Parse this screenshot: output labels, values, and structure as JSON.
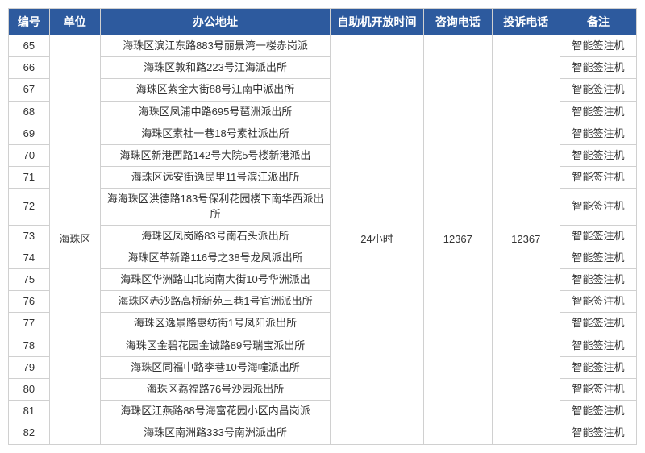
{
  "columns": [
    "编号",
    "单位",
    "办公地址",
    "自助机开放时间",
    "咨询电话",
    "投诉电话",
    "备注"
  ],
  "unit": "海珠区",
  "open_time": "24小时",
  "consult_phone": "12367",
  "complaint_phone": "12367",
  "rows": [
    {
      "id": "65",
      "addr": "海珠区滨江东路883号丽景湾一楼赤岗派",
      "note": "智能签注机"
    },
    {
      "id": "66",
      "addr": "海珠区敦和路223号江海派出所",
      "note": "智能签注机"
    },
    {
      "id": "67",
      "addr": "海珠区紫金大街88号江南中派出所",
      "note": "智能签注机"
    },
    {
      "id": "68",
      "addr": "海珠区凤浦中路695号琶洲派出所",
      "note": "智能签注机"
    },
    {
      "id": "69",
      "addr": "海珠区素社一巷18号素社派出所",
      "note": "智能签注机"
    },
    {
      "id": "70",
      "addr": "海珠区新港西路142号大院5号楼新港派出",
      "note": "智能签注机"
    },
    {
      "id": "71",
      "addr": "海珠区远安街逸民里11号滨江派出所",
      "note": "智能签注机"
    },
    {
      "id": "72",
      "addr": "海海珠区洪德路183号保利花园楼下南华西派出所",
      "note": "智能签注机"
    },
    {
      "id": "73",
      "addr": "海珠区凤岗路83号南石头派出所",
      "note": "智能签注机"
    },
    {
      "id": "74",
      "addr": "海珠区革新路116号之38号龙凤派出所",
      "note": "智能签注机"
    },
    {
      "id": "75",
      "addr": "海珠区华洲路山北岗南大街10号华洲派出",
      "note": "智能签注机"
    },
    {
      "id": "76",
      "addr": "海珠区赤沙路高桥新苑三巷1号官洲派出所",
      "note": "智能签注机"
    },
    {
      "id": "77",
      "addr": "海珠区逸景路惠纺街1号凤阳派出所",
      "note": "智能签注机"
    },
    {
      "id": "78",
      "addr": "海珠区金碧花园金诚路89号瑞宝派出所",
      "note": "智能签注机"
    },
    {
      "id": "79",
      "addr": "海珠区同福中路李巷10号海幢派出所",
      "note": "智能签注机"
    },
    {
      "id": "80",
      "addr": "海珠区荔福路76号沙园派出所",
      "note": "智能签注机"
    },
    {
      "id": "81",
      "addr": "海珠区江燕路88号海富花园小区内昌岗派",
      "note": "智能签注机"
    },
    {
      "id": "82",
      "addr": "海珠区南洲路333号南洲派出所",
      "note": "智能签注机"
    }
  ],
  "style": {
    "header_bg": "#2d5a9e",
    "header_fg": "#ffffff",
    "border_color": "#d0d0d0",
    "body_fg": "#333333",
    "header_fontsize": 14,
    "body_fontsize": 13
  }
}
